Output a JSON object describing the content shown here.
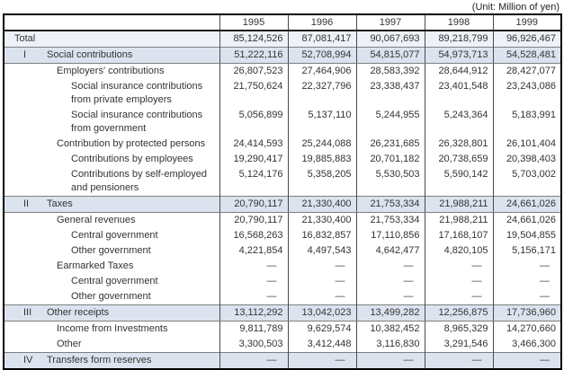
{
  "unit_label": "(Unit: Million of yen)",
  "columns": [
    "1995",
    "1996",
    "1997",
    "1998",
    "1999"
  ],
  "colors": {
    "section_row_bg": "#dce3ef",
    "total_row_bg": "#eef2f8",
    "outer_border": "#000000",
    "grid_line": "#4a4a4a",
    "section_line": "#7f7f7f",
    "text": "#333333"
  },
  "rows": [
    {
      "roman": "",
      "label": "Total",
      "label2": "",
      "level": "total",
      "values": [
        "85,124,526",
        "87,081,417",
        "90,067,693",
        "89,218,799",
        "96,926,467"
      ]
    },
    {
      "roman": "I",
      "label": "Social contributions",
      "label2": "",
      "level": "section",
      "values": [
        "51,222,116",
        "52,708,994",
        "54,815,077",
        "54,973,713",
        "54,528,481"
      ]
    },
    {
      "roman": "",
      "label": "Employers' contributions",
      "label2": "",
      "level": "l1",
      "values": [
        "26,807,523",
        "27,464,906",
        "28,583,392",
        "28,644,912",
        "28,427,077"
      ]
    },
    {
      "roman": "",
      "label": "Social insurance contributions",
      "label2": "from private employers",
      "level": "l2",
      "values": [
        "21,750,624",
        "22,327,796",
        "23,338,437",
        "23,401,548",
        "23,243,086"
      ]
    },
    {
      "roman": "",
      "label": "Social insurance contributions",
      "label2": "from government",
      "level": "l2",
      "values": [
        "5,056,899",
        "5,137,110",
        "5,244,955",
        "5,243,364",
        "5,183,991"
      ]
    },
    {
      "roman": "",
      "label": "Contribution by protected persons",
      "label2": "",
      "level": "l1",
      "values": [
        "24,414,593",
        "25,244,088",
        "26,231,685",
        "26,328,801",
        "26,101,404"
      ]
    },
    {
      "roman": "",
      "label": "Contributions by employees",
      "label2": "",
      "level": "l2",
      "values": [
        "19,290,417",
        "19,885,883",
        "20,701,182",
        "20,738,659",
        "20,398,403"
      ]
    },
    {
      "roman": "",
      "label": "Contributions by self-employed",
      "label2": "and pensioners",
      "level": "l2",
      "values": [
        "5,124,176",
        "5,358,205",
        "5,530,503",
        "5,590,142",
        "5,703,002"
      ]
    },
    {
      "roman": "II",
      "label": "Taxes",
      "label2": "",
      "level": "section",
      "values": [
        "20,790,117",
        "21,330,400",
        "21,753,334",
        "21,988,211",
        "24,661,026"
      ]
    },
    {
      "roman": "",
      "label": "General revenues",
      "label2": "",
      "level": "l1",
      "values": [
        "20,790,117",
        "21,330,400",
        "21,753,334",
        "21,988,211",
        "24,661,026"
      ]
    },
    {
      "roman": "",
      "label": "Central government",
      "label2": "",
      "level": "l2",
      "values": [
        "16,568,263",
        "16,832,857",
        "17,110,856",
        "17,168,107",
        "19,504,855"
      ]
    },
    {
      "roman": "",
      "label": "Other government",
      "label2": "",
      "level": "l2",
      "values": [
        "4,221,854",
        "4,497,543",
        "4,642,477",
        "4,820,105",
        "5,156,171"
      ]
    },
    {
      "roman": "",
      "label": "Earmarked Taxes",
      "label2": "",
      "level": "l1",
      "values": [
        "—",
        "—",
        "—",
        "—",
        "—"
      ]
    },
    {
      "roman": "",
      "label": "Central government",
      "label2": "",
      "level": "l2",
      "values": [
        "—",
        "—",
        "—",
        "—",
        "—"
      ]
    },
    {
      "roman": "",
      "label": "Other government",
      "label2": "",
      "level": "l2",
      "values": [
        "—",
        "—",
        "—",
        "—",
        "—"
      ]
    },
    {
      "roman": "III",
      "label": "Other receipts",
      "label2": "",
      "level": "section",
      "values": [
        "13,112,292",
        "13,042,023",
        "13,499,282",
        "12,256,875",
        "17,736,960"
      ]
    },
    {
      "roman": "",
      "label": "Income from Investments",
      "label2": "",
      "level": "l1",
      "values": [
        "9,811,789",
        "9,629,574",
        "10,382,452",
        "8,965,329",
        "14,270,660"
      ]
    },
    {
      "roman": "",
      "label": "Other",
      "label2": "",
      "level": "l1",
      "values": [
        "3,300,503",
        "3,412,448",
        "3,116,830",
        "3,291,546",
        "3,466,300"
      ]
    },
    {
      "roman": "IV",
      "label": "Transfers form reserves",
      "label2": "",
      "level": "section",
      "values": [
        "—",
        "—",
        "—",
        "—",
        "—"
      ]
    }
  ]
}
